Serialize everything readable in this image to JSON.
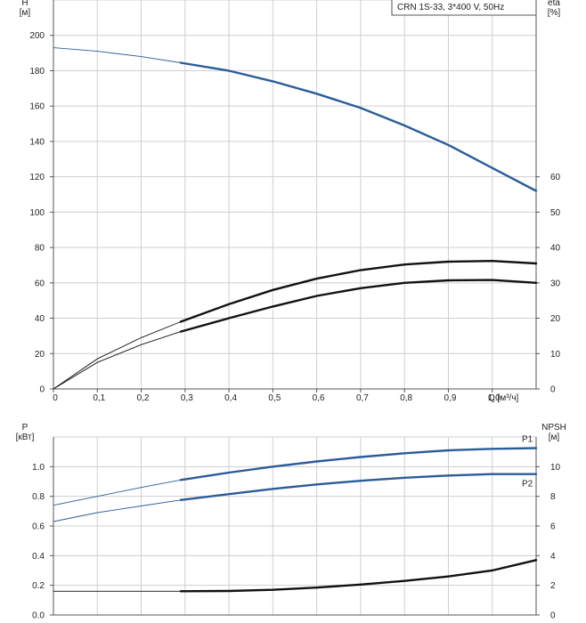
{
  "chart_data": [
    {
      "type": "line",
      "title": "CRN 1S-33, 3*400 V, 50Hz",
      "ylabel": "H\n[м]",
      "y2label": "eta\n[%]",
      "xlabel": "Q [м³/ч]",
      "xlim": [
        0,
        1.1
      ],
      "ylim": [
        0,
        220
      ],
      "y2lim": [
        0,
        110
      ],
      "grid": true,
      "x_ticks": [
        "0",
        "0,1",
        "0,2",
        "0,3",
        "0,4",
        "0,5",
        "0,6",
        "0,7",
        "0,8",
        "0,9",
        "1,0"
      ],
      "y_ticks": [
        "0",
        "20",
        "40",
        "60",
        "80",
        "100",
        "120",
        "140",
        "160",
        "180",
        "200"
      ],
      "y2_ticks": [
        "0",
        "10",
        "20",
        "30",
        "40",
        "50",
        "60"
      ],
      "series": [
        {
          "key": "H",
          "axis": "left",
          "color": "#2a5c9a",
          "operating_range": [
            0.29,
            1.1
          ],
          "x": [
            0,
            0.1,
            0.2,
            0.29,
            0.4,
            0.5,
            0.6,
            0.7,
            0.8,
            0.9,
            1.0,
            1.1
          ],
          "y": [
            193,
            191,
            188,
            184.5,
            180,
            174,
            167,
            159,
            149,
            138,
            125,
            112
          ]
        },
        {
          "key": "eta_upper",
          "axis": "right",
          "color": "#111111",
          "operating_range": [
            0.29,
            1.1
          ],
          "x": [
            0,
            0.1,
            0.2,
            0.29,
            0.4,
            0.5,
            0.6,
            0.7,
            0.8,
            0.9,
            1.0,
            1.1
          ],
          "y": [
            0,
            8.5,
            14.5,
            19,
            24,
            28,
            31.2,
            33.6,
            35.2,
            36,
            36.2,
            35.5
          ]
        },
        {
          "key": "eta_lower",
          "axis": "right",
          "color": "#111111",
          "operating_range": [
            0.29,
            1.1
          ],
          "x": [
            0,
            0.1,
            0.2,
            0.29,
            0.4,
            0.5,
            0.6,
            0.7,
            0.8,
            0.9,
            1.0,
            1.1
          ],
          "y": [
            0,
            7.5,
            12.5,
            16.2,
            20,
            23.3,
            26.3,
            28.5,
            30,
            30.7,
            30.8,
            30
          ]
        }
      ]
    },
    {
      "type": "line",
      "ylabel": "P\n[кВт]",
      "y2label": "NPSH\n[м]",
      "xlim": [
        0,
        1.1
      ],
      "ylim": [
        0,
        1.2
      ],
      "y2lim": [
        0,
        12
      ],
      "grid": true,
      "y_ticks": [
        "0.0",
        "0.2",
        "0.4",
        "0.6",
        "0.8",
        "1.0"
      ],
      "y2_ticks": [
        "0",
        "2",
        "4",
        "6",
        "8",
        "10"
      ],
      "series": [
        {
          "key": "P1",
          "name": "P1",
          "axis": "left",
          "color": "#2a5c9a",
          "operating_range": [
            0.29,
            1.1
          ],
          "x": [
            0,
            0.1,
            0.2,
            0.29,
            0.4,
            0.5,
            0.6,
            0.7,
            0.8,
            0.9,
            1.0,
            1.1
          ],
          "y": [
            0.74,
            0.8,
            0.86,
            0.91,
            0.96,
            1.0,
            1.035,
            1.065,
            1.09,
            1.11,
            1.12,
            1.125
          ]
        },
        {
          "key": "P2",
          "name": "P2",
          "axis": "left",
          "color": "#2a5c9a",
          "operating_range": [
            0.29,
            1.1
          ],
          "x": [
            0,
            0.1,
            0.2,
            0.29,
            0.4,
            0.5,
            0.6,
            0.7,
            0.8,
            0.9,
            1.0,
            1.1
          ],
          "y": [
            0.63,
            0.69,
            0.735,
            0.775,
            0.815,
            0.85,
            0.88,
            0.905,
            0.925,
            0.94,
            0.95,
            0.95
          ]
        },
        {
          "key": "NPSH",
          "axis": "right",
          "color": "#111111",
          "operating_range": [
            0.29,
            1.1
          ],
          "x": [
            0,
            0.1,
            0.2,
            0.29,
            0.4,
            0.5,
            0.6,
            0.7,
            0.8,
            0.9,
            1.0,
            1.1
          ],
          "y": [
            1.6,
            1.6,
            1.6,
            1.6,
            1.62,
            1.7,
            1.85,
            2.05,
            2.3,
            2.6,
            3.0,
            3.7
          ]
        }
      ]
    }
  ]
}
